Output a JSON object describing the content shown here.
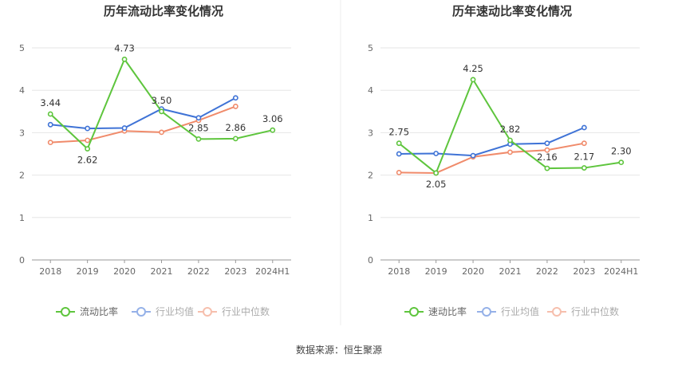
{
  "colors": {
    "current": "#5ec53d",
    "avg": "#3f73d6",
    "median": "#f08b6b",
    "grid": "#e6e6e6",
    "axis": "#999999"
  },
  "source_label": "数据来源：恒生聚源",
  "chart_data": [
    {
      "type": "line",
      "title": "历年流动比率变化情况",
      "categories": [
        "2018",
        "2019",
        "2020",
        "2021",
        "2022",
        "2023",
        "2024H1"
      ],
      "ylim": [
        0,
        5
      ],
      "yticks": [
        "0",
        "1",
        "2",
        "3",
        "4",
        "5"
      ],
      "grid": true,
      "legend_position": "bottom",
      "series": [
        {
          "name": "流动比率",
          "values": [
            3.44,
            2.62,
            4.73,
            3.5,
            2.85,
            2.86,
            3.06
          ],
          "labels": [
            "3.44",
            "2.62",
            "4.73",
            "3.50",
            "2.85",
            "2.86",
            "3.06"
          ]
        },
        {
          "name": "行业均值",
          "values": [
            3.19,
            3.1,
            3.11,
            3.56,
            3.35,
            3.82,
            null
          ]
        },
        {
          "name": "行业中位数",
          "values": [
            2.77,
            2.82,
            3.04,
            3.01,
            3.29,
            3.62,
            null
          ]
        }
      ]
    },
    {
      "type": "line",
      "title": "历年速动比率变化情况",
      "categories": [
        "2018",
        "2019",
        "2020",
        "2021",
        "2022",
        "2023",
        "2024H1"
      ],
      "ylim": [
        0,
        5
      ],
      "yticks": [
        "0",
        "1",
        "2",
        "3",
        "4",
        "5"
      ],
      "grid": true,
      "legend_position": "bottom",
      "series": [
        {
          "name": "速动比率",
          "values": [
            2.75,
            2.05,
            4.25,
            2.82,
            2.16,
            2.17,
            2.3
          ],
          "labels": [
            "2.75",
            "2.05",
            "4.25",
            "2.82",
            "2.16",
            "2.17",
            "2.30"
          ]
        },
        {
          "name": "行业均值",
          "values": [
            2.5,
            2.51,
            2.46,
            2.73,
            2.75,
            3.12,
            null
          ]
        },
        {
          "name": "行业中位数",
          "values": [
            2.06,
            2.05,
            2.43,
            2.54,
            2.59,
            2.75,
            null
          ]
        }
      ]
    }
  ]
}
